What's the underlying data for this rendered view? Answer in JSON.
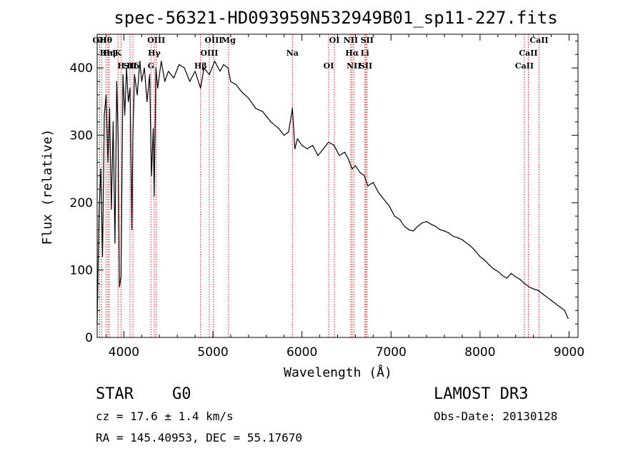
{
  "chart_data": {
    "type": "line",
    "title": "spec-56321-HD093959N532949B01_sp11-227.fits",
    "xlabel": "Wavelength (Å)",
    "ylabel": "Flux (relative)",
    "xlim": [
      3700,
      9100
    ],
    "ylim": [
      0,
      450
    ],
    "xticks": [
      4000,
      5000,
      6000,
      7000,
      8000,
      9000
    ],
    "yticks": [
      0,
      100,
      200,
      300,
      400
    ],
    "series": [
      {
        "name": "flux",
        "x": [
          3700,
          3720,
          3740,
          3760,
          3780,
          3800,
          3820,
          3840,
          3860,
          3880,
          3900,
          3920,
          3935,
          3950,
          3968,
          3990,
          4010,
          4030,
          4050,
          4070,
          4090,
          4101,
          4120,
          4150,
          4180,
          4200,
          4230,
          4260,
          4290,
          4310,
          4330,
          4340,
          4360,
          4380,
          4420,
          4460,
          4500,
          4560,
          4620,
          4680,
          4740,
          4800,
          4861,
          4900,
          4960,
          5020,
          5080,
          5120,
          5170,
          5200,
          5260,
          5320,
          5400,
          5480,
          5560,
          5650,
          5740,
          5800,
          5850,
          5893,
          5920,
          5950,
          6000,
          6060,
          6120,
          6180,
          6240,
          6300,
          6360,
          6420,
          6480,
          6520,
          6563,
          6600,
          6650,
          6700,
          6740,
          6800,
          6860,
          6920,
          6980,
          7040,
          7100,
          7150,
          7200,
          7250,
          7300,
          7350,
          7400,
          7450,
          7500,
          7550,
          7600,
          7650,
          7700,
          7750,
          7800,
          7850,
          7900,
          7950,
          8000,
          8050,
          8100,
          8150,
          8200,
          8250,
          8300,
          8350,
          8400,
          8450,
          8500,
          8550,
          8600,
          8650,
          8700,
          8750,
          8800,
          8850,
          8900,
          8950,
          8990
        ],
        "y": [
          20,
          180,
          250,
          120,
          330,
          360,
          260,
          340,
          190,
          320,
          140,
          380,
          300,
          75,
          90,
          390,
          330,
          400,
          350,
          370,
          160,
          300,
          390,
          360,
          410,
          380,
          400,
          350,
          390,
          240,
          310,
          210,
          400,
          370,
          410,
          380,
          395,
          385,
          405,
          400,
          380,
          395,
          370,
          400,
          390,
          410,
          395,
          405,
          400,
          380,
          375,
          365,
          355,
          340,
          335,
          320,
          310,
          300,
          305,
          340,
          280,
          295,
          285,
          280,
          285,
          270,
          280,
          290,
          285,
          270,
          275,
          265,
          250,
          255,
          245,
          240,
          225,
          230,
          215,
          205,
          195,
          180,
          175,
          165,
          160,
          158,
          165,
          170,
          172,
          168,
          165,
          160,
          158,
          155,
          150,
          148,
          145,
          140,
          135,
          128,
          120,
          115,
          108,
          102,
          98,
          92,
          88,
          95,
          90,
          86,
          80,
          75,
          72,
          70,
          65,
          60,
          55,
          50,
          45,
          40,
          28
        ]
      }
    ],
    "annotations": [
      {
        "label": "Hθ",
        "x": 3798
      },
      {
        "label": "K",
        "x": 3934
      },
      {
        "label": "Hδ",
        "x": 4102
      },
      {
        "label": "OI",
        "x": 3750
      },
      {
        "label": "HeI",
        "x": 3820
      },
      {
        "label": "SII",
        "x": 4069
      },
      {
        "label": "OII",
        "x": 3727
      },
      {
        "label": "Hη",
        "x": 3835
      },
      {
        "label": "H",
        "x": 3968
      },
      {
        "label": "OIII",
        "x": 4363
      },
      {
        "label": "Hγ",
        "x": 4341
      },
      {
        "label": "G",
        "x": 4304
      },
      {
        "label": "OIII",
        "x": 5007
      },
      {
        "label": "OIII",
        "x": 4959
      },
      {
        "label": "Hβ",
        "x": 4861
      },
      {
        "label": "Mg",
        "x": 5175
      },
      {
        "label": "Na",
        "x": 5893
      },
      {
        "label": "OI",
        "x": 6300
      },
      {
        "label": "OI",
        "x": 6364
      },
      {
        "label": "Hα",
        "x": 6563
      },
      {
        "label": "SII",
        "x": 6717
      },
      {
        "label": "NII",
        "x": 6548
      },
      {
        "label": "Li",
        "x": 6707
      },
      {
        "label": "NII",
        "x": 6583
      },
      {
        "label": "SII",
        "x": 6731
      },
      {
        "label": "CaII",
        "x": 8542
      },
      {
        "label": "CaII",
        "x": 8498
      },
      {
        "label": "CaII",
        "x": 8662
      }
    ]
  },
  "info": {
    "object_class": "STAR",
    "subclass": "G0",
    "survey": "LAMOST DR3",
    "cz": "cz = 17.6 ± 1.4 km/s",
    "obs_date": "Obs-Date: 20130128",
    "coords": "RA = 145.40953, DEC =  55.17670"
  }
}
